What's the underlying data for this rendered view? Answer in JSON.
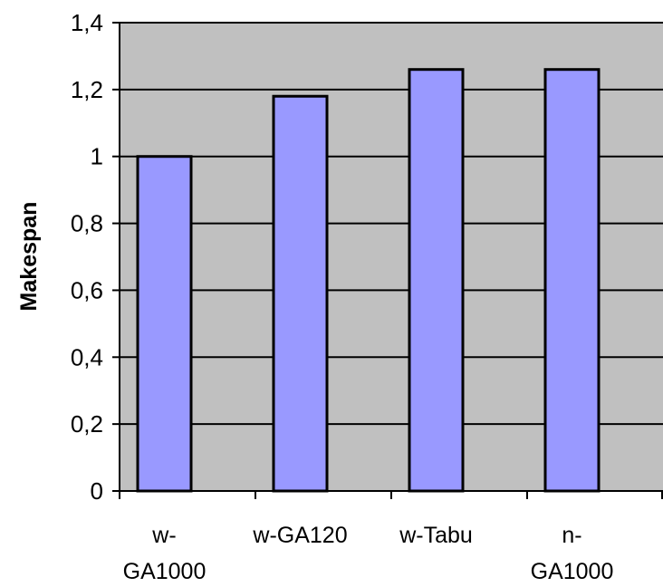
{
  "chart_data": {
    "type": "bar",
    "title": "",
    "xlabel": "",
    "ylabel": "Makespan",
    "categories": [
      [
        "w-",
        "GA1000"
      ],
      [
        "w-GA120"
      ],
      [
        "w-Tabu"
      ],
      [
        "n-",
        "GA1000"
      ]
    ],
    "values": [
      1.0,
      1.18,
      1.26,
      1.26
    ],
    "ylim": [
      0,
      1.4
    ],
    "yticks": [
      "0",
      "0,2",
      "0,4",
      "0,6",
      "0,8",
      "1",
      "1,2",
      "1,4"
    ],
    "grid": true,
    "legend": "none",
    "colors": {
      "plot_background": "#c0c0c0",
      "bar_fill": "#9999ff",
      "bar_stroke": "#000000",
      "gridline": "#000000"
    }
  }
}
